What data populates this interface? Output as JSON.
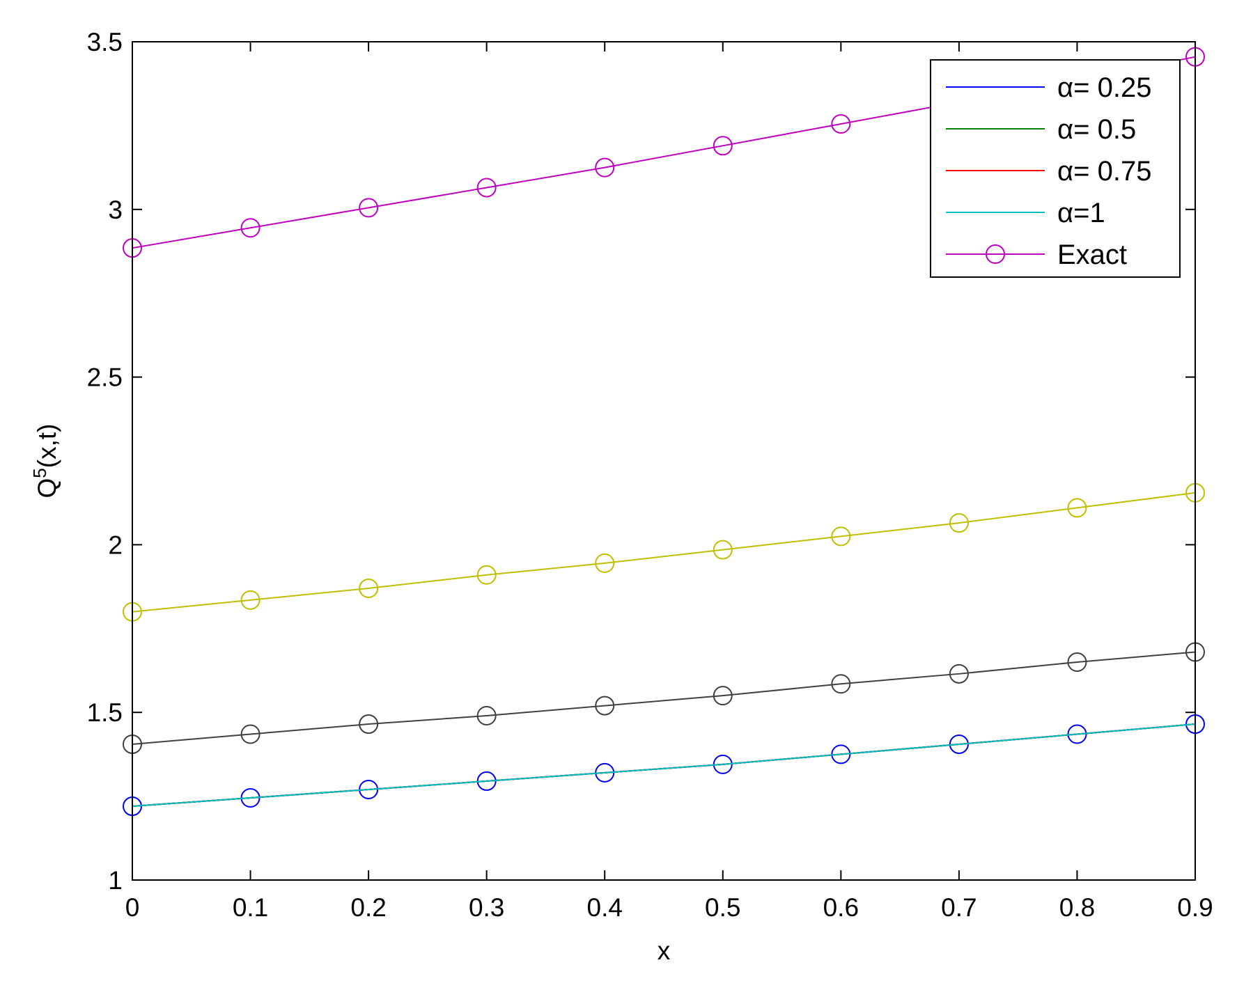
{
  "chart_data": {
    "type": "line",
    "xlabel": "x",
    "ylabel": {
      "base": "Q",
      "sup": "5",
      "rest": "(x,t)"
    },
    "xlim": [
      0,
      0.9
    ],
    "ylim": [
      1,
      3.5
    ],
    "xticks": [
      0,
      0.1,
      0.2,
      0.3,
      0.4,
      0.5,
      0.6,
      0.7,
      0.8,
      0.9
    ],
    "xtick_labels": [
      "0",
      "0.1",
      "0.2",
      "0.3",
      "0.4",
      "0.5",
      "0.6",
      "0.7",
      "0.8",
      "0.9"
    ],
    "yticks": [
      1,
      1.5,
      2,
      2.5,
      3,
      3.5
    ],
    "ytick_labels": [
      "1",
      "1.5",
      "2",
      "2.5",
      "3",
      "3.5"
    ],
    "grid": false,
    "legend_position": "top-right",
    "x": [
      0,
      0.1,
      0.2,
      0.3,
      0.4,
      0.5,
      0.6,
      0.7,
      0.8,
      0.9
    ],
    "series": [
      {
        "name": "α= 0.25",
        "color": "#0000ff",
        "marker": "none",
        "in_legend": true,
        "values": [
          1.22,
          1.245,
          1.27,
          1.295,
          1.32,
          1.345,
          1.375,
          1.405,
          1.435,
          1.465
        ]
      },
      {
        "name": "α= 0.5",
        "color": "#008000",
        "marker": "none",
        "in_legend": true,
        "values": [
          1.22,
          1.245,
          1.27,
          1.295,
          1.32,
          1.345,
          1.375,
          1.405,
          1.435,
          1.465
        ]
      },
      {
        "name": "α= 0.75",
        "color": "#ff0000",
        "marker": "none",
        "in_legend": true,
        "values": [
          1.22,
          1.245,
          1.27,
          1.295,
          1.32,
          1.345,
          1.375,
          1.405,
          1.435,
          1.465
        ]
      },
      {
        "name": "α=1",
        "color": "#00bfbf",
        "marker": "none",
        "in_legend": true,
        "values": [
          1.22,
          1.245,
          1.27,
          1.295,
          1.32,
          1.345,
          1.375,
          1.405,
          1.435,
          1.465
        ]
      },
      {
        "name": "Exact",
        "color": "#bf00bf",
        "marker": "circle",
        "in_legend": true,
        "values": [
          2.885,
          2.945,
          3.005,
          3.065,
          3.125,
          3.19,
          3.255,
          3.32,
          3.385,
          3.455
        ]
      },
      {
        "name": "",
        "color": "#0000ff",
        "marker": "circle",
        "in_legend": false,
        "values": [
          1.22,
          1.245,
          1.27,
          1.295,
          1.32,
          1.345,
          1.375,
          1.405,
          1.435,
          1.465
        ]
      },
      {
        "name": "",
        "color": "#404040",
        "marker": "circle",
        "in_legend": false,
        "values": [
          1.405,
          1.435,
          1.465,
          1.49,
          1.52,
          1.55,
          1.585,
          1.615,
          1.65,
          1.68
        ]
      },
      {
        "name": "",
        "color": "#bfbf00",
        "marker": "circle",
        "in_legend": false,
        "values": [
          1.8,
          1.835,
          1.87,
          1.91,
          1.945,
          1.985,
          2.025,
          2.065,
          2.11,
          2.155
        ]
      }
    ]
  }
}
